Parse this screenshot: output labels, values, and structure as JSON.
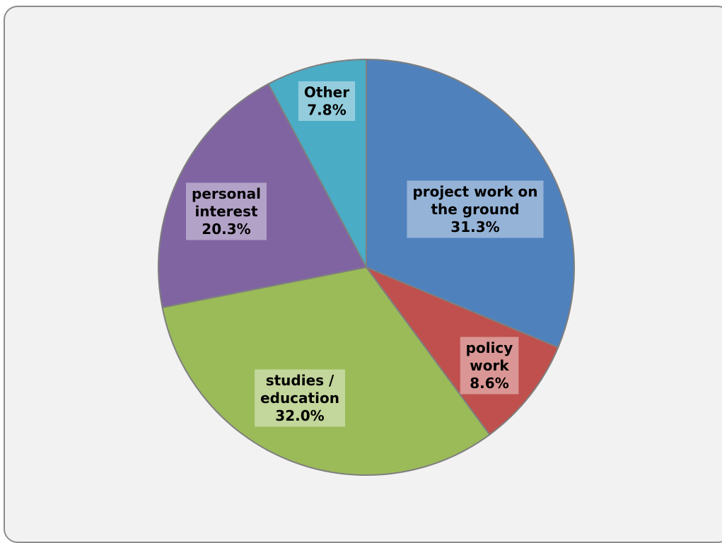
{
  "chart_data": {
    "type": "pie",
    "title": "",
    "slices": [
      {
        "label": [
          "project work on",
          "the ground"
        ],
        "value": 31.3,
        "value_label": "31.3%",
        "color": "#4f81bd",
        "label_bg": "#95b3d7"
      },
      {
        "label": [
          "policy",
          "work"
        ],
        "value": 8.6,
        "value_label": "8.6%",
        "color": "#c0504d",
        "label_bg": "#d99694"
      },
      {
        "label": [
          "studies /",
          "education"
        ],
        "value": 32.0,
        "value_label": "32.0%",
        "color": "#9bbb59",
        "label_bg": "#c3d69b"
      },
      {
        "label": [
          "personal",
          "interest"
        ],
        "value": 20.3,
        "value_label": "20.3%",
        "color": "#8064a2",
        "label_bg": "#b3a2c7"
      },
      {
        "label": [
          "Other"
        ],
        "value": 7.8,
        "value_label": "7.8%",
        "color": "#4bacc6",
        "label_bg": "#93cddd"
      }
    ],
    "start_angle": "12 o'clock",
    "direction": "clockwise",
    "legend": "none",
    "background": "#f2f2f2",
    "slice_border": "#7f7f7f"
  }
}
